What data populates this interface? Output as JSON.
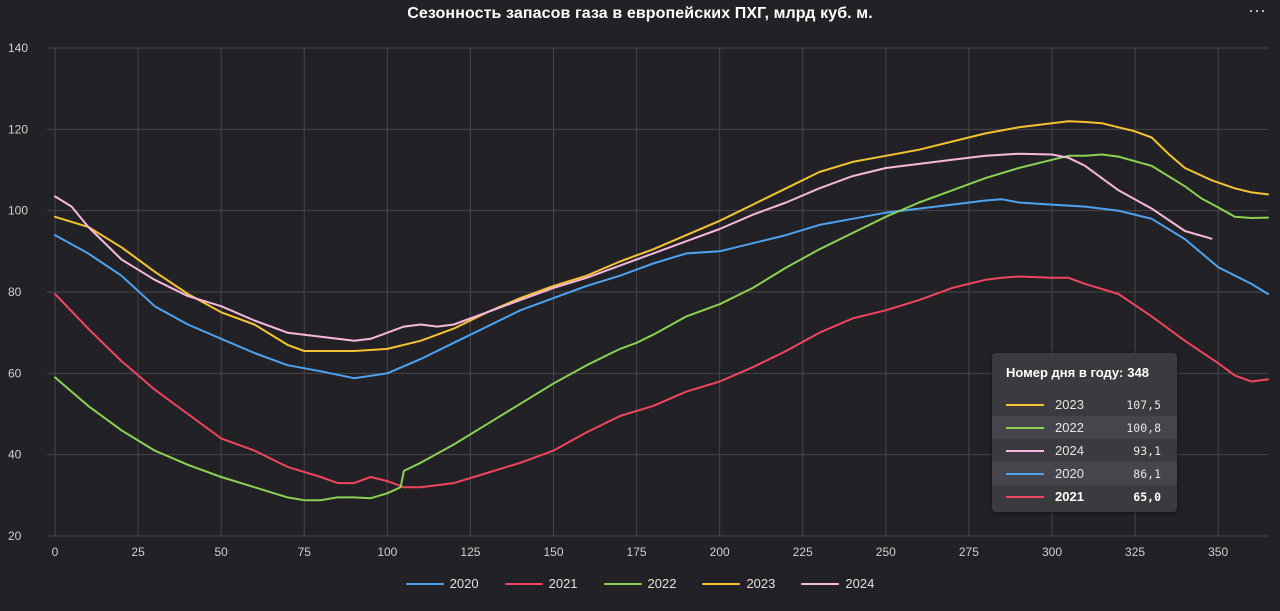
{
  "chart_data": {
    "type": "line",
    "title": "Сезонность запасов газа в европейских ПХГ, млрд куб. м.",
    "xlabel": "",
    "ylabel": "",
    "xlim": [
      0,
      365
    ],
    "ylim": [
      20,
      140
    ],
    "x_ticks": [
      0,
      25,
      50,
      75,
      100,
      125,
      150,
      175,
      200,
      225,
      250,
      275,
      300,
      325,
      350
    ],
    "y_ticks": [
      20,
      40,
      60,
      80,
      100,
      120,
      140
    ],
    "grid": true,
    "legend_position": "bottom",
    "series": [
      {
        "name": "2020",
        "color": "#4da3f0",
        "x": [
          0,
          10,
          20,
          30,
          40,
          50,
          60,
          70,
          80,
          90,
          100,
          110,
          120,
          130,
          140,
          150,
          160,
          170,
          180,
          190,
          200,
          210,
          220,
          230,
          240,
          250,
          260,
          270,
          280,
          285,
          290,
          300,
          310,
          320,
          330,
          340,
          350,
          360,
          365
        ],
        "y": [
          94,
          89.5,
          84,
          76.5,
          72,
          68.5,
          65,
          62,
          60.5,
          58.8,
          60,
          63.5,
          67.5,
          71.5,
          75.5,
          78.5,
          81.5,
          84,
          87,
          89.5,
          90,
          92,
          94,
          96.5,
          98,
          99.5,
          100.5,
          101.5,
          102.5,
          102.8,
          102,
          101.5,
          101,
          100,
          98,
          93,
          86.1,
          82,
          79.5
        ]
      },
      {
        "name": "2021",
        "color": "#f0445f",
        "x": [
          0,
          10,
          20,
          30,
          40,
          50,
          60,
          70,
          80,
          85,
          90,
          95,
          100,
          105,
          110,
          120,
          130,
          140,
          150,
          160,
          170,
          180,
          190,
          200,
          210,
          220,
          230,
          240,
          250,
          260,
          270,
          280,
          285,
          290,
          300,
          305,
          310,
          320,
          330,
          340,
          350,
          355,
          360,
          365
        ],
        "y": [
          79.5,
          71,
          63,
          56,
          50,
          44,
          41,
          37,
          34.5,
          33,
          33,
          34.5,
          33.5,
          32,
          32,
          33,
          35.5,
          38,
          41,
          45.5,
          49.5,
          52,
          55.5,
          58,
          61.5,
          65.5,
          70,
          73.5,
          75.5,
          78,
          81,
          83,
          83.5,
          83.8,
          83.5,
          83.5,
          82,
          79.5,
          74,
          68,
          62.5,
          59.5,
          58,
          58.5
        ]
      },
      {
        "name": "2022",
        "color": "#8bd152",
        "x": [
          0,
          10,
          20,
          30,
          40,
          50,
          60,
          70,
          75,
          80,
          85,
          90,
          95,
          100,
          104,
          105,
          110,
          120,
          130,
          140,
          150,
          160,
          170,
          175,
          180,
          190,
          200,
          210,
          220,
          230,
          240,
          250,
          260,
          270,
          280,
          290,
          300,
          305,
          310,
          315,
          320,
          330,
          340,
          345,
          350,
          355,
          360,
          365
        ],
        "y": [
          59,
          52,
          46,
          41,
          37.5,
          34.5,
          32,
          29.5,
          28.8,
          28.8,
          29.5,
          29.5,
          29.3,
          30.5,
          32,
          36,
          38,
          42.5,
          47.5,
          52.5,
          57.5,
          62,
          66,
          67.5,
          69.5,
          74,
          77,
          81,
          86,
          90.5,
          94.5,
          98.5,
          102,
          105,
          108,
          110.5,
          112.5,
          113.5,
          113.5,
          113.8,
          113.3,
          111,
          106,
          103,
          100.8,
          98.5,
          98.2,
          98.3
        ]
      },
      {
        "name": "2023",
        "color": "#f5c231",
        "x": [
          0,
          10,
          20,
          30,
          40,
          50,
          60,
          70,
          75,
          80,
          90,
          100,
          110,
          120,
          130,
          140,
          150,
          160,
          170,
          180,
          190,
          200,
          210,
          220,
          230,
          240,
          250,
          260,
          270,
          280,
          290,
          300,
          305,
          310,
          315,
          320,
          325,
          330,
          335,
          340,
          348,
          355,
          360,
          365
        ],
        "y": [
          98.5,
          96,
          91,
          85,
          79.5,
          75,
          72,
          67,
          65.5,
          65.5,
          65.5,
          66,
          68,
          71,
          75,
          78.5,
          81.5,
          84,
          87.5,
          90.5,
          94,
          97.5,
          101.5,
          105.5,
          109.5,
          112,
          113.5,
          115,
          117,
          119,
          120.5,
          121.5,
          122,
          121.8,
          121.5,
          120.5,
          119.5,
          118,
          114,
          110.5,
          107.5,
          105.5,
          104.5,
          104
        ]
      },
      {
        "name": "2024",
        "color": "#f7b8dd",
        "x": [
          0,
          5,
          10,
          20,
          30,
          40,
          50,
          60,
          70,
          80,
          90,
          95,
          100,
          105,
          110,
          115,
          120,
          130,
          140,
          150,
          160,
          170,
          180,
          190,
          200,
          210,
          220,
          230,
          240,
          250,
          260,
          270,
          280,
          290,
          300,
          305,
          310,
          320,
          330,
          340,
          348
        ],
        "y": [
          103.5,
          101,
          96,
          88,
          83,
          79,
          76.5,
          73,
          70,
          69,
          68,
          68.5,
          70,
          71.5,
          72,
          71.5,
          72,
          75,
          78,
          81,
          83.5,
          86.5,
          89.5,
          92.5,
          95.5,
          99,
          102,
          105.5,
          108.5,
          110.5,
          111.5,
          112.5,
          113.5,
          114,
          113.8,
          113,
          111,
          105,
          100.5,
          95,
          93.1
        ]
      }
    ]
  },
  "tooltip": {
    "label": "Номер дня в году:",
    "day": "348",
    "rows": [
      {
        "year": "2023",
        "value": "107,5",
        "color": "#f5c231"
      },
      {
        "year": "2022",
        "value": "100,8",
        "color": "#8bd152"
      },
      {
        "year": "2024",
        "value": "93,1",
        "color": "#f7b8dd"
      },
      {
        "year": "2020",
        "value": "86,1",
        "color": "#4da3f0"
      },
      {
        "year": "2021",
        "value": "65,0",
        "color": "#f0445f"
      }
    ]
  },
  "menu_icon": "more-horizontal-icon",
  "menu_glyph": "···",
  "colors": {
    "background": "#222226",
    "grid": "#46464c",
    "axis_text": "#d0d0d0"
  }
}
